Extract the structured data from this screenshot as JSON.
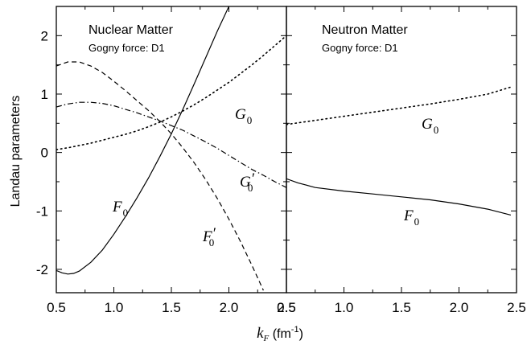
{
  "ylabel": "Landau parameters",
  "xlabel": {
    "symbol": "k",
    "subscript": "F",
    "unit": " (fm",
    "exponent": "-1",
    "close": ")"
  },
  "y_ticks": [
    "-2",
    "-1",
    "0",
    "1",
    "2"
  ],
  "x_ticks": [
    "0.5",
    "1.0",
    "1.5",
    "2.0",
    "2.5"
  ],
  "chart_data": [
    {
      "type": "line",
      "title": "Nuclear Matter",
      "subtitle": "Gogny force: D1",
      "xlim": [
        0.5,
        2.5
      ],
      "ylim": [
        -2.4,
        2.5
      ],
      "grid": false,
      "series": [
        {
          "name": "F0",
          "label_symbol": "F",
          "label_sub": "0",
          "label_prime": "",
          "style": "solid",
          "x": [
            0.5,
            0.55,
            0.6,
            0.65,
            0.7,
            0.8,
            0.9,
            1.0,
            1.1,
            1.2,
            1.3,
            1.4,
            1.5,
            1.6,
            1.7,
            1.8,
            1.9,
            2.0
          ],
          "y": [
            -2.02,
            -2.06,
            -2.08,
            -2.07,
            -2.03,
            -1.88,
            -1.67,
            -1.4,
            -1.1,
            -0.78,
            -0.44,
            -0.07,
            0.32,
            0.74,
            1.18,
            1.63,
            2.08,
            2.5
          ]
        },
        {
          "name": "F0'",
          "label_symbol": "F",
          "label_sub": "0",
          "label_prime": "′",
          "style": "dashed",
          "x": [
            0.5,
            0.6,
            0.7,
            0.8,
            0.9,
            1.0,
            1.1,
            1.2,
            1.3,
            1.4,
            1.5,
            1.6,
            1.7,
            1.8,
            1.9,
            2.0,
            2.1,
            2.2,
            2.3
          ],
          "y": [
            1.48,
            1.55,
            1.55,
            1.48,
            1.37,
            1.22,
            1.06,
            0.89,
            0.72,
            0.53,
            0.32,
            0.08,
            -0.18,
            -0.47,
            -0.79,
            -1.14,
            -1.52,
            -1.93,
            -2.36
          ]
        },
        {
          "name": "G0'",
          "label_symbol": "G",
          "label_sub": "0",
          "label_prime": "′",
          "style": "dashdot",
          "x": [
            0.5,
            0.6,
            0.7,
            0.8,
            0.9,
            1.0,
            1.1,
            1.2,
            1.3,
            1.4,
            1.5,
            1.6,
            1.7,
            1.8,
            1.9,
            2.0,
            2.1,
            2.2,
            2.3,
            2.4,
            2.5
          ],
          "y": [
            0.78,
            0.83,
            0.86,
            0.86,
            0.84,
            0.8,
            0.74,
            0.68,
            0.61,
            0.54,
            0.46,
            0.38,
            0.28,
            0.18,
            0.07,
            -0.05,
            -0.17,
            -0.29,
            -0.39,
            -0.5,
            -0.6
          ]
        },
        {
          "name": "G0",
          "label_symbol": "G",
          "label_sub": "0",
          "label_prime": "",
          "style": "dotted",
          "x": [
            0.5,
            0.6,
            0.7,
            0.8,
            0.9,
            1.0,
            1.1,
            1.2,
            1.3,
            1.4,
            1.5,
            1.6,
            1.7,
            1.8,
            1.9,
            2.0,
            2.1,
            2.2,
            2.3,
            2.4,
            2.5
          ],
          "y": [
            0.05,
            0.08,
            0.12,
            0.16,
            0.21,
            0.26,
            0.31,
            0.37,
            0.44,
            0.52,
            0.61,
            0.71,
            0.82,
            0.94,
            1.07,
            1.2,
            1.35,
            1.5,
            1.66,
            1.83,
            2.0
          ]
        }
      ]
    },
    {
      "type": "line",
      "title": "Neutron Matter",
      "subtitle": "Gogny force: D1",
      "xlim": [
        0.5,
        2.5
      ],
      "ylim": [
        -2.4,
        2.5
      ],
      "grid": false,
      "series": [
        {
          "name": "G0",
          "label_symbol": "G",
          "label_sub": "0",
          "label_prime": "",
          "style": "dotted",
          "x": [
            0.5,
            0.75,
            1.0,
            1.25,
            1.5,
            1.75,
            2.0,
            2.25,
            2.45
          ],
          "y": [
            0.48,
            0.55,
            0.62,
            0.69,
            0.76,
            0.83,
            0.91,
            1.0,
            1.12
          ]
        },
        {
          "name": "F0",
          "label_symbol": "F",
          "label_sub": "0",
          "label_prime": "",
          "style": "solid",
          "x": [
            0.5,
            0.6,
            0.75,
            1.0,
            1.25,
            1.5,
            1.75,
            2.0,
            2.25,
            2.45
          ],
          "y": [
            -0.45,
            -0.52,
            -0.6,
            -0.66,
            -0.71,
            -0.76,
            -0.81,
            -0.88,
            -0.97,
            -1.07
          ]
        }
      ]
    }
  ]
}
